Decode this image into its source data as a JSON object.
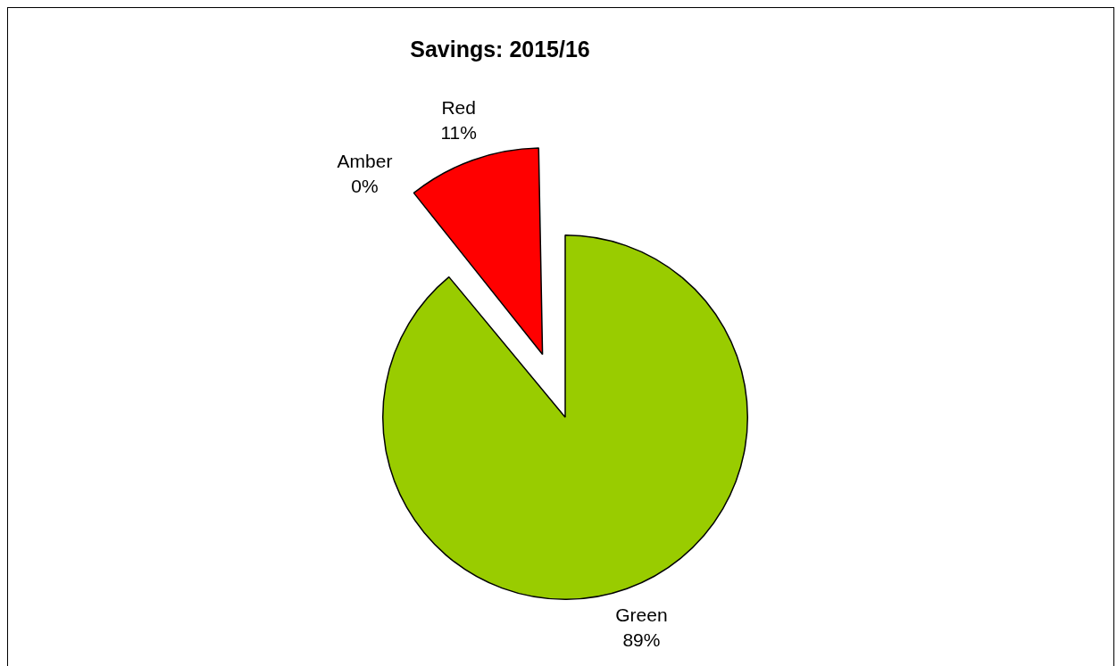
{
  "chart_data": {
    "type": "pie",
    "title": "Savings: 2015/16",
    "categories": [
      "Green",
      "Amber",
      "Red"
    ],
    "values": [
      89,
      0,
      11
    ],
    "value_labels": [
      "89%",
      "0%",
      "11%"
    ],
    "colors": [
      "#99cc00",
      "#ffc000",
      "#ff0000"
    ],
    "legend": false
  }
}
